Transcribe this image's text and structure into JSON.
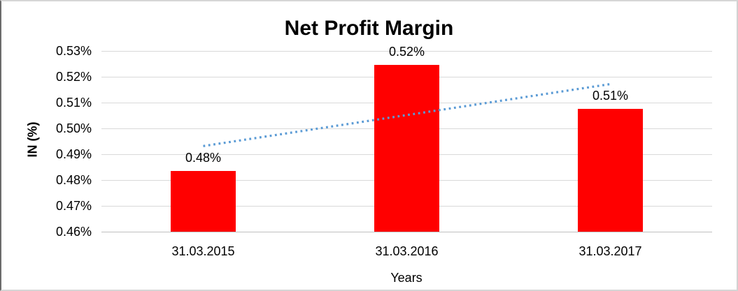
{
  "chart_data": {
    "type": "bar",
    "title": "Net Profit Margin",
    "categories": [
      "31.03.2015",
      "31.03.2016",
      "31.03.2017"
    ],
    "values": [
      0.4835,
      0.5245,
      0.5075
    ],
    "data_labels": [
      "0.48%",
      "0.52%",
      "0.51%"
    ],
    "xlabel": "Years",
    "ylabel": "IN (%)",
    "ylim": [
      0.46,
      0.53
    ],
    "ytick_step": 0.01,
    "ytick_labels": [
      "0.46%",
      "0.47%",
      "0.48%",
      "0.49%",
      "0.50%",
      "0.51%",
      "0.52%",
      "0.53%"
    ],
    "grid": true,
    "legend": false,
    "bar_color": "#ff0000",
    "trendline": {
      "type": "linear",
      "style": "dotted",
      "color": "#5b9bd5"
    }
  }
}
